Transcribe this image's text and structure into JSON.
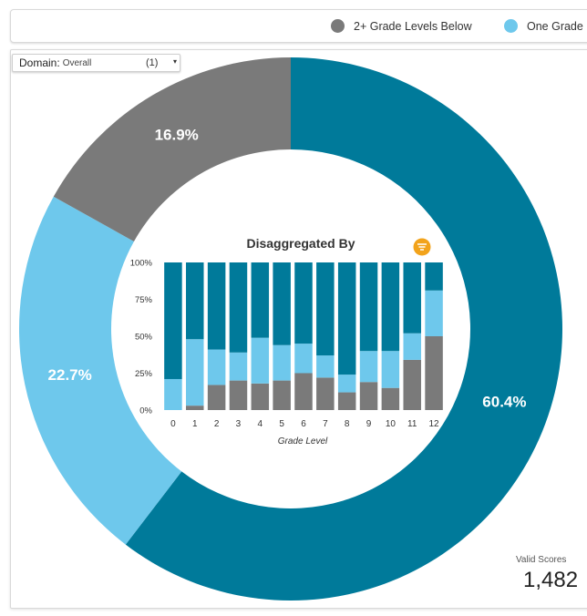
{
  "legend": [
    {
      "label": "2+ Grade Levels Below",
      "color": "#7a7a7a"
    },
    {
      "label": "One Grade",
      "color": "#6ec8ec"
    }
  ],
  "domain_filter": {
    "label": "Domain:",
    "value": "Overall",
    "count": "(1)",
    "arrow": "▾"
  },
  "valid_scores": {
    "label": "Valid Scores",
    "value": "1,482"
  },
  "colors": {
    "below2": "#7a7a7a",
    "below1": "#6ec8ec",
    "onOrAbove": "#007a9a"
  },
  "filter_icon": "filter-icon",
  "chart_data": [
    {
      "type": "pie",
      "donut": true,
      "labels": [
        "2+ Grade Levels Below",
        "One Grade",
        ""
      ],
      "values": [
        16.9,
        22.7,
        60.4
      ],
      "value_labels": [
        "16.9%",
        "22.7%",
        "60.4%"
      ]
    },
    {
      "type": "bar",
      "stacked": true,
      "normalized": true,
      "title": "Disaggregated By",
      "xlabel": "Grade Level",
      "categories": [
        "0",
        "1",
        "2",
        "3",
        "4",
        "5",
        "6",
        "7",
        "8",
        "9",
        "10",
        "11",
        "12"
      ],
      "yticks": [
        "0%",
        "25%",
        "50%",
        "75%",
        "100%"
      ],
      "ylim": [
        0,
        100
      ],
      "series": [
        {
          "name": "2+ Grade Levels Below",
          "values": [
            0,
            3,
            17,
            20,
            18,
            20,
            25,
            22,
            12,
            19,
            15,
            34,
            50
          ]
        },
        {
          "name": "One Grade",
          "values": [
            21,
            45,
            24,
            19,
            31,
            24,
            20,
            15,
            12,
            21,
            25,
            18,
            31
          ]
        },
        {
          "name": "",
          "values": [
            79,
            52,
            59,
            61,
            51,
            56,
            55,
            63,
            76,
            60,
            60,
            48,
            19
          ]
        }
      ]
    }
  ]
}
